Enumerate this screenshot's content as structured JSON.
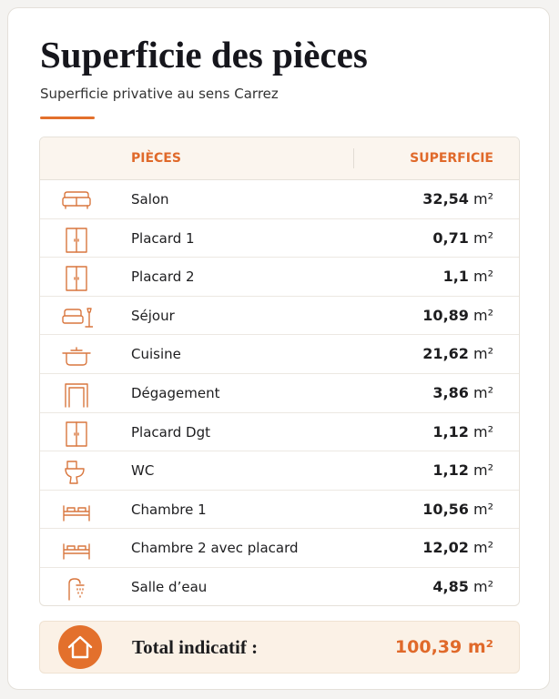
{
  "header": {
    "title": "Superficie des pièces",
    "subtitle": "Superficie privative au sens Carrez"
  },
  "table": {
    "columns": [
      "PIÈCES",
      "SUPERFICIE"
    ],
    "unit": "m²",
    "rows": [
      {
        "name": "Salon",
        "area": "32,54"
      },
      {
        "name": "Placard 1",
        "area": "0,71"
      },
      {
        "name": "Placard 2",
        "area": "1,1"
      },
      {
        "name": "Séjour",
        "area": "10,89"
      },
      {
        "name": "Cuisine",
        "area": "21,62"
      },
      {
        "name": "Dégagement",
        "area": "3,86"
      },
      {
        "name": "Placard Dgt",
        "area": "1,12"
      },
      {
        "name": "WC",
        "area": "1,12"
      },
      {
        "name": "Chambre 1",
        "area": "10,56"
      },
      {
        "name": "Chambre 2 avec placard",
        "area": "12,02"
      },
      {
        "name": "Salle d’eau",
        "area": "4,85"
      }
    ]
  },
  "total": {
    "label": "Total indicatif :",
    "area": "100,39",
    "unit": "m²"
  }
}
